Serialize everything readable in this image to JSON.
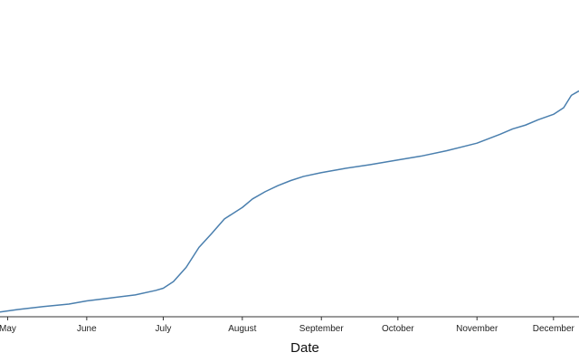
{
  "chart_data": {
    "type": "line",
    "xlabel": "Date",
    "x_tick_labels": [
      "May",
      "June",
      "July",
      "August",
      "September",
      "October",
      "November",
      "December"
    ],
    "x_tick_dates": [
      "2020-05-01",
      "2020-06-01",
      "2020-07-01",
      "2020-08-01",
      "2020-09-01",
      "2020-10-01",
      "2020-11-01",
      "2020-12-01"
    ],
    "xlim": [
      "2020-04-28",
      "2020-12-11"
    ],
    "ylim": [
      0,
      100
    ],
    "grid": false,
    "y_axis_visible": false,
    "series": [
      {
        "color": "#4a7fae",
        "x": [
          "2020-04-28",
          "2020-05-05",
          "2020-05-15",
          "2020-05-25",
          "2020-06-01",
          "2020-06-10",
          "2020-06-20",
          "2020-06-28",
          "2020-07-01",
          "2020-07-05",
          "2020-07-10",
          "2020-07-15",
          "2020-07-20",
          "2020-07-25",
          "2020-08-01",
          "2020-08-05",
          "2020-08-10",
          "2020-08-15",
          "2020-08-20",
          "2020-08-25",
          "2020-09-01",
          "2020-09-10",
          "2020-09-20",
          "2020-10-01",
          "2020-10-10",
          "2020-10-20",
          "2020-11-01",
          "2020-11-10",
          "2020-11-15",
          "2020-11-20",
          "2020-11-25",
          "2020-12-01",
          "2020-12-05",
          "2020-12-08",
          "2020-12-11"
        ],
        "y": [
          1.5,
          2.3,
          3.2,
          4.0,
          5.0,
          5.9,
          6.9,
          8.3,
          9.0,
          11.1,
          15.6,
          21.9,
          26.3,
          30.9,
          34.5,
          37.2,
          39.5,
          41.4,
          43.0,
          44.3,
          45.5,
          46.8,
          48.0,
          49.5,
          50.7,
          52.4,
          54.8,
          57.6,
          59.3,
          60.5,
          62.2,
          63.9,
          66.0,
          69.9,
          71.3
        ]
      }
    ]
  }
}
